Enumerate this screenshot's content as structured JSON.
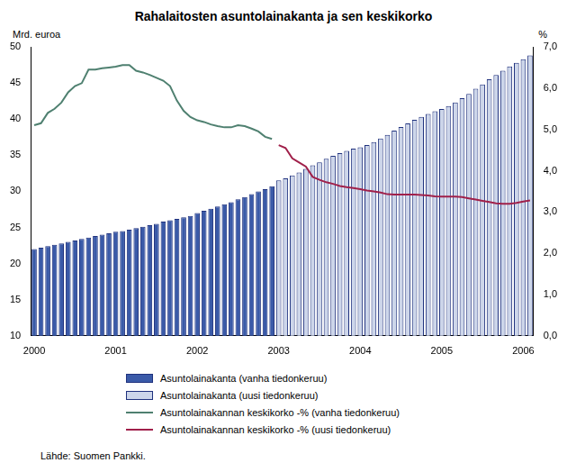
{
  "chart_data": {
    "type": "bar",
    "title": "Rahalaitosten asuntolainakanta ja sen keskikorko",
    "y_label": "Mrd. euroa",
    "y2_label": "%",
    "source": "Lähde: Suomen Pankki.",
    "categories": [
      "2000",
      null,
      null,
      null,
      null,
      null,
      null,
      null,
      null,
      null,
      null,
      null,
      "2001",
      null,
      null,
      null,
      null,
      null,
      null,
      null,
      null,
      null,
      null,
      null,
      "2002",
      null,
      null,
      null,
      null,
      null,
      null,
      null,
      null,
      null,
      null,
      null,
      "2003",
      null,
      null,
      null,
      null,
      null,
      null,
      null,
      null,
      null,
      null,
      null,
      "2004",
      null,
      null,
      null,
      null,
      null,
      null,
      null,
      null,
      null,
      null,
      null,
      "2005",
      null,
      null,
      null,
      null,
      null,
      null,
      null,
      null,
      null,
      null,
      null,
      "2006",
      null
    ],
    "ylim": [
      10,
      50
    ],
    "yticks": [
      10,
      15,
      20,
      25,
      30,
      35,
      40,
      45,
      50
    ],
    "y2lim": [
      0,
      7
    ],
    "y2ticks": [
      {
        "value": 0,
        "label": "0,0"
      },
      {
        "value": 1,
        "label": "1,0"
      },
      {
        "value": 2,
        "label": "2,0"
      },
      {
        "value": 3,
        "label": "3,0"
      },
      {
        "value": 4,
        "label": "4,0"
      },
      {
        "value": 5,
        "label": "5,0"
      },
      {
        "value": 6,
        "label": "6,0"
      },
      {
        "value": 7,
        "label": "7,0"
      }
    ],
    "grid": false,
    "legend": "bottom",
    "series": [
      {
        "name": "Asuntolainakanta (vanha tiedonkeruu)",
        "type": "bar",
        "color": "#3a5aa8",
        "values": [
          22.0,
          22.2,
          22.4,
          22.6,
          22.8,
          23.0,
          23.2,
          23.4,
          23.6,
          23.8,
          24.0,
          24.2,
          24.4,
          24.5,
          24.7,
          24.9,
          25.1,
          25.3,
          25.5,
          25.8,
          26.0,
          26.2,
          26.4,
          26.6,
          27.0,
          27.3,
          27.6,
          27.9,
          28.2,
          28.5,
          28.9,
          29.2,
          29.6,
          30.0,
          30.3,
          30.7,
          null,
          null,
          null,
          null,
          null,
          null,
          null,
          null,
          null,
          null,
          null,
          null,
          null,
          null,
          null,
          null,
          null,
          null,
          null,
          null,
          null,
          null,
          null,
          null,
          null,
          null,
          null,
          null,
          null,
          null,
          null,
          null,
          null,
          null,
          null,
          null,
          null,
          null
        ]
      },
      {
        "name": "Asuntolainakanta (uusi tiedonkeruu)",
        "type": "bar",
        "color": "#cdd6ea",
        "values": [
          null,
          null,
          null,
          null,
          null,
          null,
          null,
          null,
          null,
          null,
          null,
          null,
          null,
          null,
          null,
          null,
          null,
          null,
          null,
          null,
          null,
          null,
          null,
          null,
          null,
          null,
          null,
          null,
          null,
          null,
          null,
          null,
          null,
          null,
          null,
          null,
          31.5,
          31.8,
          32.2,
          32.6,
          33.1,
          33.6,
          34.0,
          34.5,
          34.9,
          35.3,
          35.6,
          35.9,
          36.1,
          36.4,
          36.8,
          37.3,
          37.8,
          38.4,
          38.9,
          39.4,
          39.9,
          40.3,
          40.7,
          41.1,
          41.4,
          41.8,
          42.3,
          42.9,
          43.5,
          44.2,
          44.8,
          45.5,
          46.1,
          46.7,
          47.3,
          47.8,
          48.3,
          48.8
        ]
      },
      {
        "name": "Asuntolainakannan keskikorko -% (vanha tiedonkeruu)",
        "type": "line",
        "axis": "y2",
        "color": "#4f8070",
        "values": [
          5.1,
          5.15,
          5.4,
          5.5,
          5.65,
          5.9,
          6.05,
          6.12,
          6.45,
          6.45,
          6.48,
          6.5,
          6.52,
          6.56,
          6.56,
          6.42,
          6.38,
          6.32,
          6.25,
          6.18,
          6.05,
          5.7,
          5.45,
          5.3,
          5.22,
          5.18,
          5.12,
          5.08,
          5.05,
          5.05,
          5.1,
          5.08,
          5.02,
          4.95,
          4.82,
          4.77,
          null,
          null,
          null,
          null,
          null,
          null,
          null,
          null,
          null,
          null,
          null,
          null,
          null,
          null,
          null,
          null,
          null,
          null,
          null,
          null,
          null,
          null,
          null,
          null,
          null,
          null,
          null,
          null,
          null,
          null,
          null,
          null,
          null,
          null,
          null,
          null,
          null,
          null
        ]
      },
      {
        "name": "Asuntolainakannan keskikorko -% (uusi tiedonkeruu)",
        "type": "line",
        "axis": "y2",
        "color": "#a0204a",
        "values": [
          null,
          null,
          null,
          null,
          null,
          null,
          null,
          null,
          null,
          null,
          null,
          null,
          null,
          null,
          null,
          null,
          null,
          null,
          null,
          null,
          null,
          null,
          null,
          null,
          null,
          null,
          null,
          null,
          null,
          null,
          null,
          null,
          null,
          null,
          null,
          null,
          4.62,
          4.55,
          4.3,
          4.2,
          4.1,
          3.85,
          3.78,
          3.72,
          3.68,
          3.63,
          3.6,
          3.58,
          3.55,
          3.52,
          3.5,
          3.47,
          3.43,
          3.42,
          3.42,
          3.42,
          3.42,
          3.41,
          3.4,
          3.38,
          3.37,
          3.37,
          3.37,
          3.36,
          3.33,
          3.3,
          3.27,
          3.24,
          3.21,
          3.2,
          3.2,
          3.22,
          3.25,
          3.28
        ]
      }
    ]
  }
}
